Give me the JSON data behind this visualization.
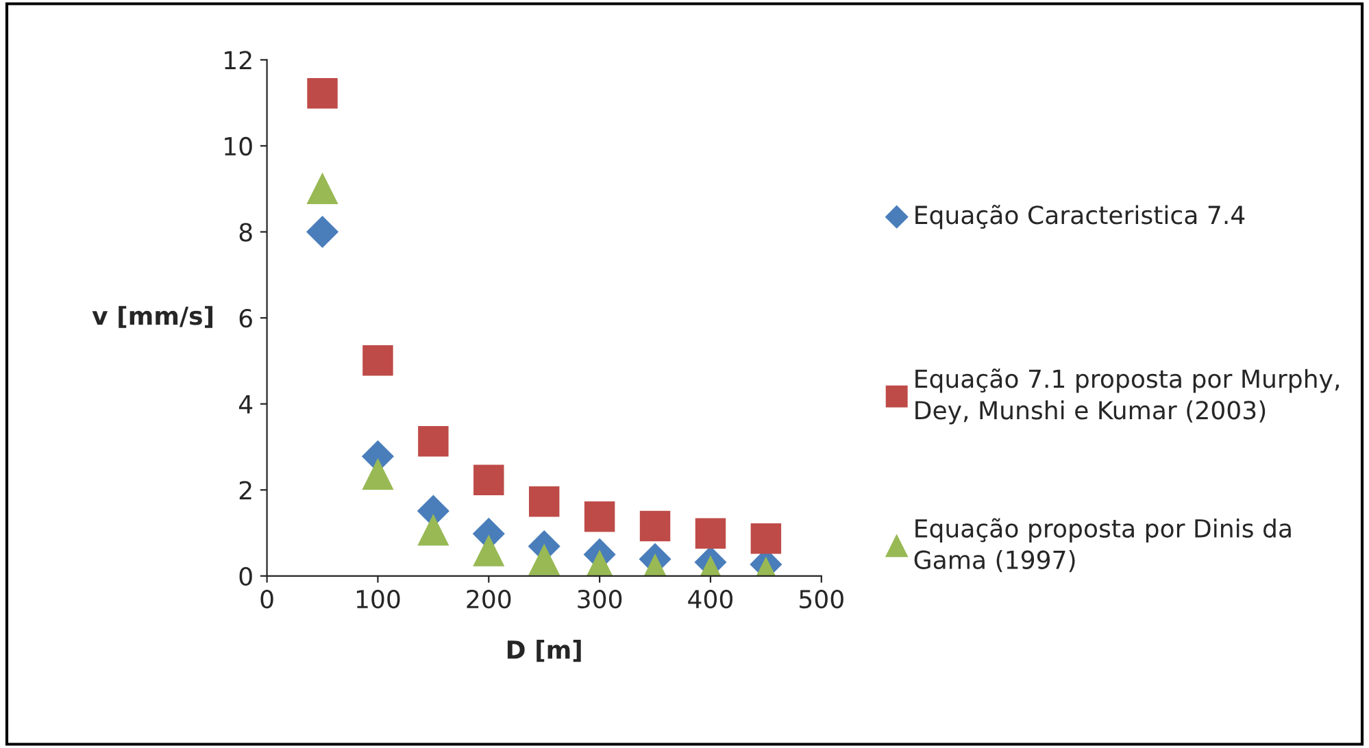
{
  "chart_data": {
    "type": "scatter",
    "xlabel": "D [m]",
    "ylabel": "v [mm/s]",
    "x": [
      50,
      100,
      150,
      200,
      250,
      300,
      350,
      400,
      450
    ],
    "series": [
      {
        "name": "Equação Caracteristica 7.4",
        "color": "#4a7ebb",
        "marker": "diamond",
        "values": [
          8.0,
          2.78,
          1.51,
          0.98,
          0.69,
          0.5,
          0.39,
          0.32,
          0.27
        ]
      },
      {
        "name": "Equação 7.1 proposta por Murphy, Dey, Munshi e Kumar (2003)",
        "color": "#be4b48",
        "marker": "square",
        "values": [
          11.22,
          5.01,
          3.13,
          2.23,
          1.73,
          1.38,
          1.16,
          0.99,
          0.87
        ]
      },
      {
        "name": "Equação proposta por Dinis da Gama (1997)",
        "color": "#98b954",
        "marker": "triangle",
        "values": [
          9.0,
          2.36,
          1.06,
          0.58,
          0.37,
          0.23,
          0.14,
          0.1,
          0.07
        ]
      }
    ],
    "xlim": [
      0,
      500
    ],
    "xticks": [
      0,
      100,
      200,
      300,
      400,
      500
    ],
    "ylim": [
      0,
      12
    ],
    "yticks": [
      0,
      2,
      4,
      6,
      8,
      10,
      12
    ],
    "grid": false,
    "legend": "right"
  }
}
